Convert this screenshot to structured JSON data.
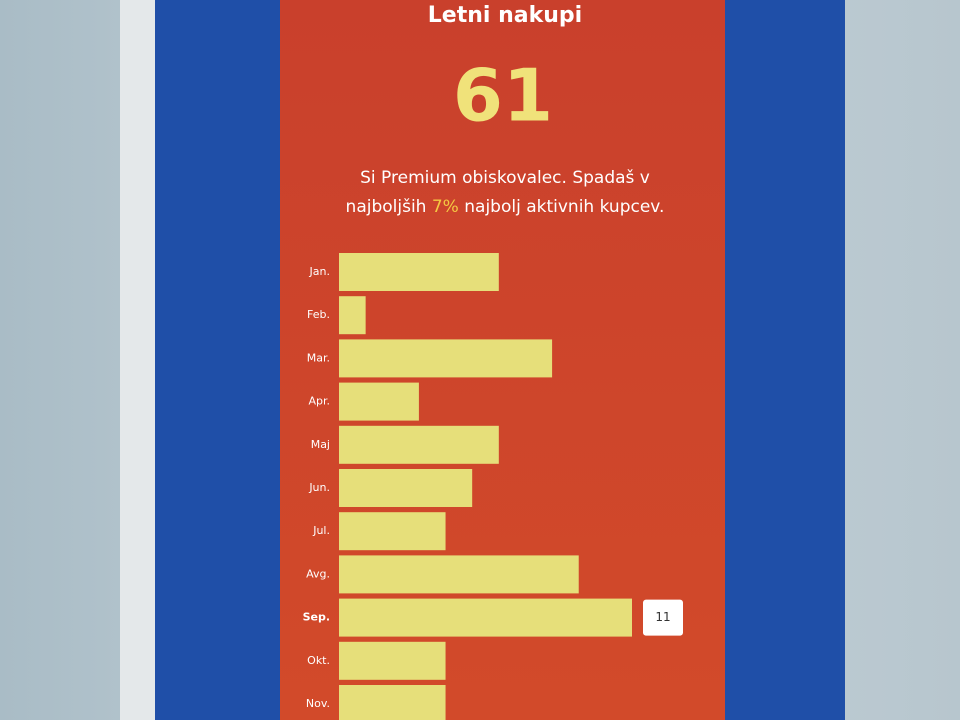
{
  "chart_data": {
    "type": "bar",
    "orientation": "horizontal",
    "title": "Letni nakupi",
    "total": 61,
    "subtitle_line1": "Si Premium obiskovalec. Spadaš v",
    "subtitle_line2": [
      "najboljših ",
      "7%",
      " najbolj aktivnih kupcev."
    ],
    "categories": [
      "Jan.",
      "Feb.",
      "Mar.",
      "Apr.",
      "Maj",
      "Jun.",
      "Jul.",
      "Avg.",
      "Sep.",
      "Okt.",
      "Nov."
    ],
    "values": [
      6,
      1,
      8,
      3,
      6,
      5,
      4,
      9,
      11,
      4,
      4
    ],
    "value_labels": [
      null,
      null,
      null,
      null,
      null,
      null,
      null,
      null,
      "11",
      null,
      null
    ],
    "color": "#e6df7a"
  }
}
